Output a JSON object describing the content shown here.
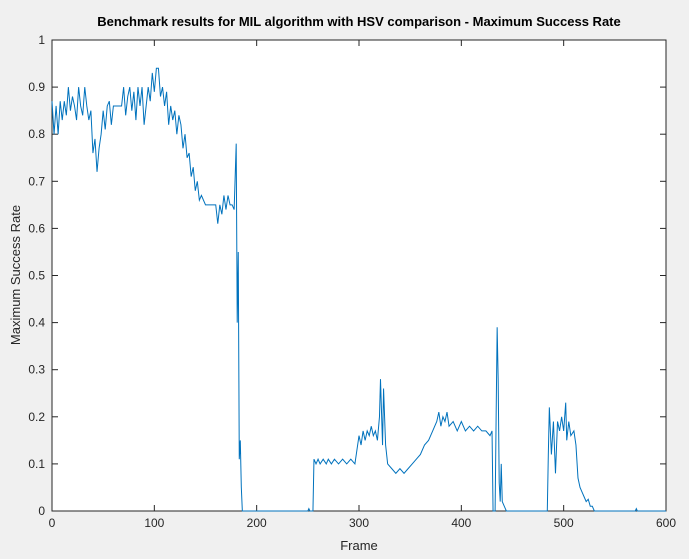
{
  "chart_data": {
    "type": "line",
    "title": "Benchmark results for MIL algorithm with HSV comparison - Maximum Success Rate",
    "x_label": "Frame",
    "y_label": "Maximum Success Rate",
    "xlim": [
      0,
      600
    ],
    "xticks": [
      0,
      100,
      200,
      300,
      400,
      500,
      600
    ],
    "ylim": [
      0,
      1
    ],
    "yticks": [
      0,
      0.1,
      0.2,
      0.3,
      0.4,
      0.5,
      0.6,
      0.7,
      0.8,
      0.9,
      1
    ],
    "grid": false,
    "series": [
      {
        "color": "#0072bd",
        "x": [
          0,
          2,
          4,
          6,
          8,
          10,
          12,
          14,
          16,
          18,
          20,
          22,
          24,
          26,
          28,
          30,
          32,
          34,
          36,
          38,
          40,
          42,
          44,
          46,
          48,
          50,
          52,
          54,
          56,
          58,
          60,
          64,
          68,
          70,
          72,
          74,
          76,
          78,
          80,
          82,
          84,
          86,
          88,
          90,
          92,
          94,
          96,
          98,
          100,
          102,
          104,
          106,
          108,
          110,
          112,
          114,
          116,
          118,
          120,
          122,
          124,
          126,
          128,
          130,
          132,
          134,
          136,
          138,
          140,
          142,
          144,
          146,
          150,
          155,
          160,
          162,
          164,
          166,
          168,
          170,
          172,
          174,
          176,
          178,
          180,
          181,
          182,
          183,
          184,
          185,
          186,
          200,
          250,
          251,
          252,
          255,
          256,
          258,
          260,
          262,
          265,
          268,
          270,
          273,
          276,
          280,
          284,
          288,
          292,
          296,
          298,
          300,
          302,
          304,
          306,
          308,
          310,
          312,
          314,
          316,
          318,
          320,
          321,
          323,
          324,
          326,
          328,
          332,
          336,
          340,
          344,
          348,
          352,
          356,
          360,
          364,
          368,
          372,
          376,
          378,
          380,
          382,
          384,
          386,
          388,
          392,
          396,
          400,
          404,
          408,
          412,
          416,
          420,
          424,
          428,
          430,
          431,
          433,
          434,
          435,
          436,
          437,
          438,
          439,
          440,
          442,
          444,
          460,
          484,
          485,
          486,
          488,
          490,
          492,
          494,
          496,
          498,
          500,
          502,
          503,
          505,
          507,
          510,
          512,
          514,
          516,
          518,
          520,
          522,
          524,
          526,
          528,
          530,
          570,
          571,
          572,
          600
        ],
        "values": [
          0.87,
          0.8,
          0.86,
          0.8,
          0.87,
          0.83,
          0.87,
          0.84,
          0.9,
          0.85,
          0.88,
          0.86,
          0.83,
          0.9,
          0.86,
          0.84,
          0.9,
          0.86,
          0.83,
          0.85,
          0.76,
          0.79,
          0.72,
          0.77,
          0.8,
          0.85,
          0.81,
          0.86,
          0.87,
          0.82,
          0.86,
          0.86,
          0.86,
          0.9,
          0.84,
          0.88,
          0.9,
          0.85,
          0.89,
          0.83,
          0.9,
          0.86,
          0.9,
          0.82,
          0.86,
          0.9,
          0.87,
          0.93,
          0.89,
          0.94,
          0.94,
          0.88,
          0.9,
          0.86,
          0.89,
          0.82,
          0.86,
          0.83,
          0.85,
          0.8,
          0.84,
          0.82,
          0.77,
          0.8,
          0.75,
          0.76,
          0.71,
          0.73,
          0.68,
          0.7,
          0.66,
          0.67,
          0.65,
          0.65,
          0.65,
          0.61,
          0.65,
          0.63,
          0.67,
          0.64,
          0.67,
          0.65,
          0.65,
          0.64,
          0.78,
          0.4,
          0.55,
          0.11,
          0.15,
          0.05,
          0,
          0,
          0,
          0.005,
          0,
          0,
          0.11,
          0.1,
          0.11,
          0.1,
          0.11,
          0.1,
          0.11,
          0.1,
          0.11,
          0.1,
          0.11,
          0.1,
          0.11,
          0.1,
          0.13,
          0.16,
          0.14,
          0.17,
          0.15,
          0.17,
          0.16,
          0.18,
          0.16,
          0.17,
          0.15,
          0.2,
          0.28,
          0.14,
          0.26,
          0.14,
          0.1,
          0.09,
          0.08,
          0.09,
          0.08,
          0.09,
          0.1,
          0.11,
          0.12,
          0.14,
          0.15,
          0.17,
          0.19,
          0.21,
          0.18,
          0.2,
          0.19,
          0.21,
          0.18,
          0.19,
          0.17,
          0.19,
          0.17,
          0.18,
          0.17,
          0.18,
          0.17,
          0.17,
          0.16,
          0.17,
          0,
          0,
          0.2,
          0.39,
          0.28,
          0.06,
          0.02,
          0.1,
          0.02,
          0.01,
          0,
          0,
          0,
          0.12,
          0.22,
          0.12,
          0.19,
          0.08,
          0.19,
          0.17,
          0.2,
          0.17,
          0.23,
          0.15,
          0.19,
          0.16,
          0.17,
          0.14,
          0.07,
          0.05,
          0.04,
          0.03,
          0.02,
          0.025,
          0.01,
          0.01,
          0,
          0,
          0.005,
          0,
          0
        ]
      }
    ]
  }
}
